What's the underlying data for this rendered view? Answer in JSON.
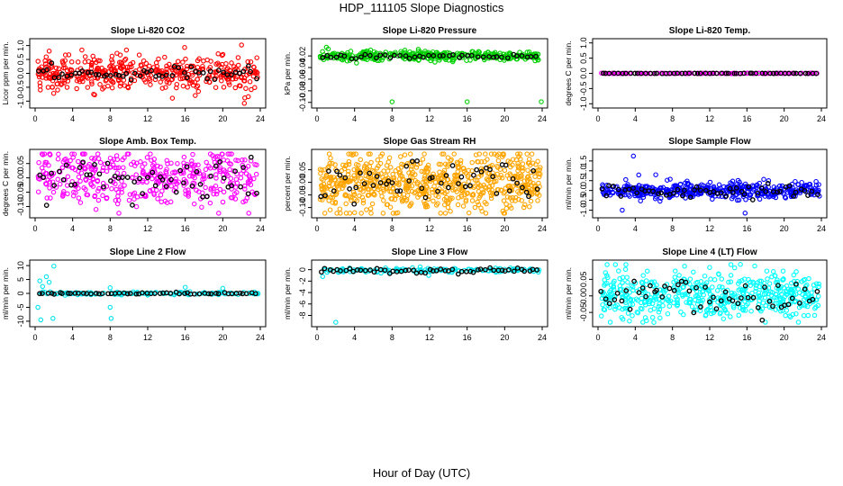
{
  "figure": {
    "title": "HDP_111105  Slope Diagnostics",
    "xlabel": "Hour of Day (UTC)"
  },
  "chart_data": [
    {
      "type": "scatter",
      "title": "Slope Li-820 CO2",
      "ylabel": "Licor ppm per min.",
      "xlim": [
        0,
        24
      ],
      "ylim": [
        -1.15,
        1.15
      ],
      "yticks": [
        -1.0,
        -0.5,
        0.0,
        0.5,
        1.0
      ],
      "xticks": [
        0,
        4,
        8,
        12,
        16,
        20,
        24
      ],
      "color": "#ff0000",
      "series": [
        {
          "name": "dense",
          "n": 420,
          "center": 0.0,
          "spread": 0.3
        },
        {
          "name": "sparse",
          "n": 55,
          "center": 0.0,
          "spread": 0.12
        }
      ],
      "outliers": [
        [
          1.5,
          0.8
        ],
        [
          2.4,
          -0.6
        ],
        [
          22.0,
          1.02
        ],
        [
          22.3,
          -1.08
        ],
        [
          8.2,
          0.62
        ],
        [
          17.4,
          -0.65
        ]
      ]
    },
    {
      "type": "scatter",
      "title": "Slope Li-820 Pressure",
      "ylabel": "kPa per min.",
      "xlim": [
        0,
        24
      ],
      "ylim": [
        -0.105,
        0.005
      ],
      "yticks": [
        -0.1,
        -0.08,
        -0.06,
        -0.04,
        -0.02
      ],
      "xticks": [
        0,
        4,
        8,
        12,
        16,
        20,
        24
      ],
      "color": "#00d000",
      "series": [
        {
          "name": "dense",
          "n": 360,
          "center": -0.02,
          "spread": 0.004
        },
        {
          "name": "sparse",
          "n": 45,
          "center": -0.021,
          "spread": 0.002
        }
      ],
      "outliers": [
        [
          1.0,
          -0.005
        ],
        [
          1.2,
          -0.008
        ],
        [
          8.0,
          -0.099
        ],
        [
          16.0,
          -0.099
        ],
        [
          23.9,
          -0.099
        ]
      ]
    },
    {
      "type": "scatter",
      "title": "Slope Li-820 Temp.",
      "ylabel": "degrees C per min.",
      "xlim": [
        0,
        24
      ],
      "ylim": [
        -1.05,
        1.05
      ],
      "yticks": [
        -1.0,
        -0.5,
        0.0,
        0.5,
        1.0
      ],
      "xticks": [
        0,
        4,
        8,
        12,
        16,
        20,
        24
      ],
      "color": "#ff00ff",
      "series": [
        {
          "name": "dense",
          "n": 160,
          "center": 0.0,
          "spread": 0.004
        },
        {
          "name": "sparse",
          "n": 55,
          "center": 0.0,
          "spread": 0.002
        }
      ],
      "outliers": []
    },
    {
      "type": "scatter",
      "title": "Slope Amb. Box Temp.",
      "ylabel": "degrees C per min.",
      "xlim": [
        0,
        24
      ],
      "ylim": [
        -0.13,
        0.09
      ],
      "yticks": [
        -0.1,
        -0.05,
        0.0,
        0.05
      ],
      "xticks": [
        0,
        4,
        8,
        12,
        16,
        20,
        24
      ],
      "color": "#ff00ff",
      "series": [
        {
          "name": "dense",
          "n": 420,
          "center": 0.0,
          "spread": 0.05
        },
        {
          "name": "sparse",
          "n": 55,
          "center": 0.0,
          "spread": 0.04
        }
      ],
      "outliers": []
    },
    {
      "type": "scatter",
      "title": "Slope Gas Stream RH",
      "ylabel": "percent per min.",
      "xlim": [
        0,
        24
      ],
      "ylim": [
        -0.13,
        0.12
      ],
      "yticks": [
        -0.1,
        -0.05,
        0.0,
        0.05
      ],
      "xticks": [
        0,
        4,
        8,
        12,
        16,
        20,
        24
      ],
      "color": "#ffa500",
      "series": [
        {
          "name": "dense",
          "n": 700,
          "center": 0.0,
          "spread": 0.06
        },
        {
          "name": "sparse",
          "n": 55,
          "center": 0.0,
          "spread": 0.045
        }
      ],
      "outliers": []
    },
    {
      "type": "scatter",
      "title": "Slope Sample Flow",
      "ylabel": "ml/min per min.",
      "xlim": [
        0,
        24
      ],
      "ylim": [
        -1.25,
        1.95
      ],
      "yticks": [
        -1.0,
        -0.5,
        0.0,
        0.5,
        1.0,
        1.5
      ],
      "xticks": [
        0,
        4,
        8,
        12,
        16,
        20,
        24
      ],
      "color": "#0000ff",
      "series": [
        {
          "name": "dense",
          "n": 450,
          "center": 0.0,
          "spread": 0.2
        },
        {
          "name": "sparse",
          "n": 55,
          "center": -0.05,
          "spread": 0.2
        }
      ],
      "outliers": [
        [
          3.8,
          1.75
        ],
        [
          15.8,
          -1.15
        ],
        [
          2.6,
          -1.0
        ],
        [
          6.2,
          0.8
        ]
      ]
    },
    {
      "type": "scatter",
      "title": "Slope Line 2 Flow",
      "ylabel": "ml/min per min.",
      "xlim": [
        0,
        24
      ],
      "ylim": [
        -11,
        11
      ],
      "yticks": [
        -10,
        -5,
        0,
        5,
        10
      ],
      "xticks": [
        0,
        4,
        8,
        12,
        16,
        20,
        24
      ],
      "color": "#00e5ee",
      "series": [
        {
          "name": "dense",
          "n": 130,
          "center": 0.0,
          "spread": 0.25
        },
        {
          "name": "sparse",
          "n": 55,
          "center": 0.0,
          "spread": 0.15
        }
      ],
      "outliers": [
        [
          0.3,
          -5.0
        ],
        [
          0.5,
          4.5
        ],
        [
          0.6,
          -9.5
        ],
        [
          0.8,
          2.5
        ],
        [
          1.2,
          6.0
        ],
        [
          1.5,
          4.0
        ],
        [
          1.9,
          -9.0
        ],
        [
          2.0,
          9.8
        ],
        [
          8.0,
          -5.0
        ],
        [
          8.1,
          -9.0
        ],
        [
          8.0,
          2.0
        ],
        [
          16.0,
          2.2
        ],
        [
          20.0,
          1.8
        ]
      ]
    },
    {
      "type": "scatter",
      "title": "Slope Line 3 Flow",
      "ylabel": "ml/min per min.",
      "xlim": [
        0,
        24
      ],
      "ylim": [
        -9.5,
        1.2
      ],
      "yticks": [
        -8,
        -6,
        -4,
        -2,
        0
      ],
      "xticks": [
        0,
        4,
        8,
        12,
        16,
        20,
        24
      ],
      "color": "#00e5ee",
      "series": [
        {
          "name": "dense",
          "n": 140,
          "center": -0.1,
          "spread": 0.2
        },
        {
          "name": "sparse",
          "n": 55,
          "center": -0.2,
          "spread": 0.25
        }
      ],
      "outliers": [
        [
          2.0,
          -9.2
        ],
        [
          0.6,
          -1.2
        ],
        [
          11.9,
          -1.0
        ]
      ]
    },
    {
      "type": "scatter",
      "title": "Slope Line 4 (LT) Flow",
      "ylabel": "ml/min per min.",
      "xlim": [
        0,
        24
      ],
      "ylim": [
        -0.085,
        0.1
      ],
      "yticks": [
        -0.05,
        0.0,
        0.05
      ],
      "xticks": [
        0,
        4,
        8,
        12,
        16,
        20,
        24
      ],
      "color": "#00ffff",
      "series": [
        {
          "name": "dense",
          "n": 520,
          "center": 0.0,
          "spread": 0.035
        },
        {
          "name": "sparse",
          "n": 55,
          "center": 0.0,
          "spread": 0.025
        }
      ],
      "outliers": [
        [
          15.3,
          0.095
        ],
        [
          6.0,
          -0.08
        ],
        [
          0.8,
          0.07
        ]
      ]
    }
  ]
}
